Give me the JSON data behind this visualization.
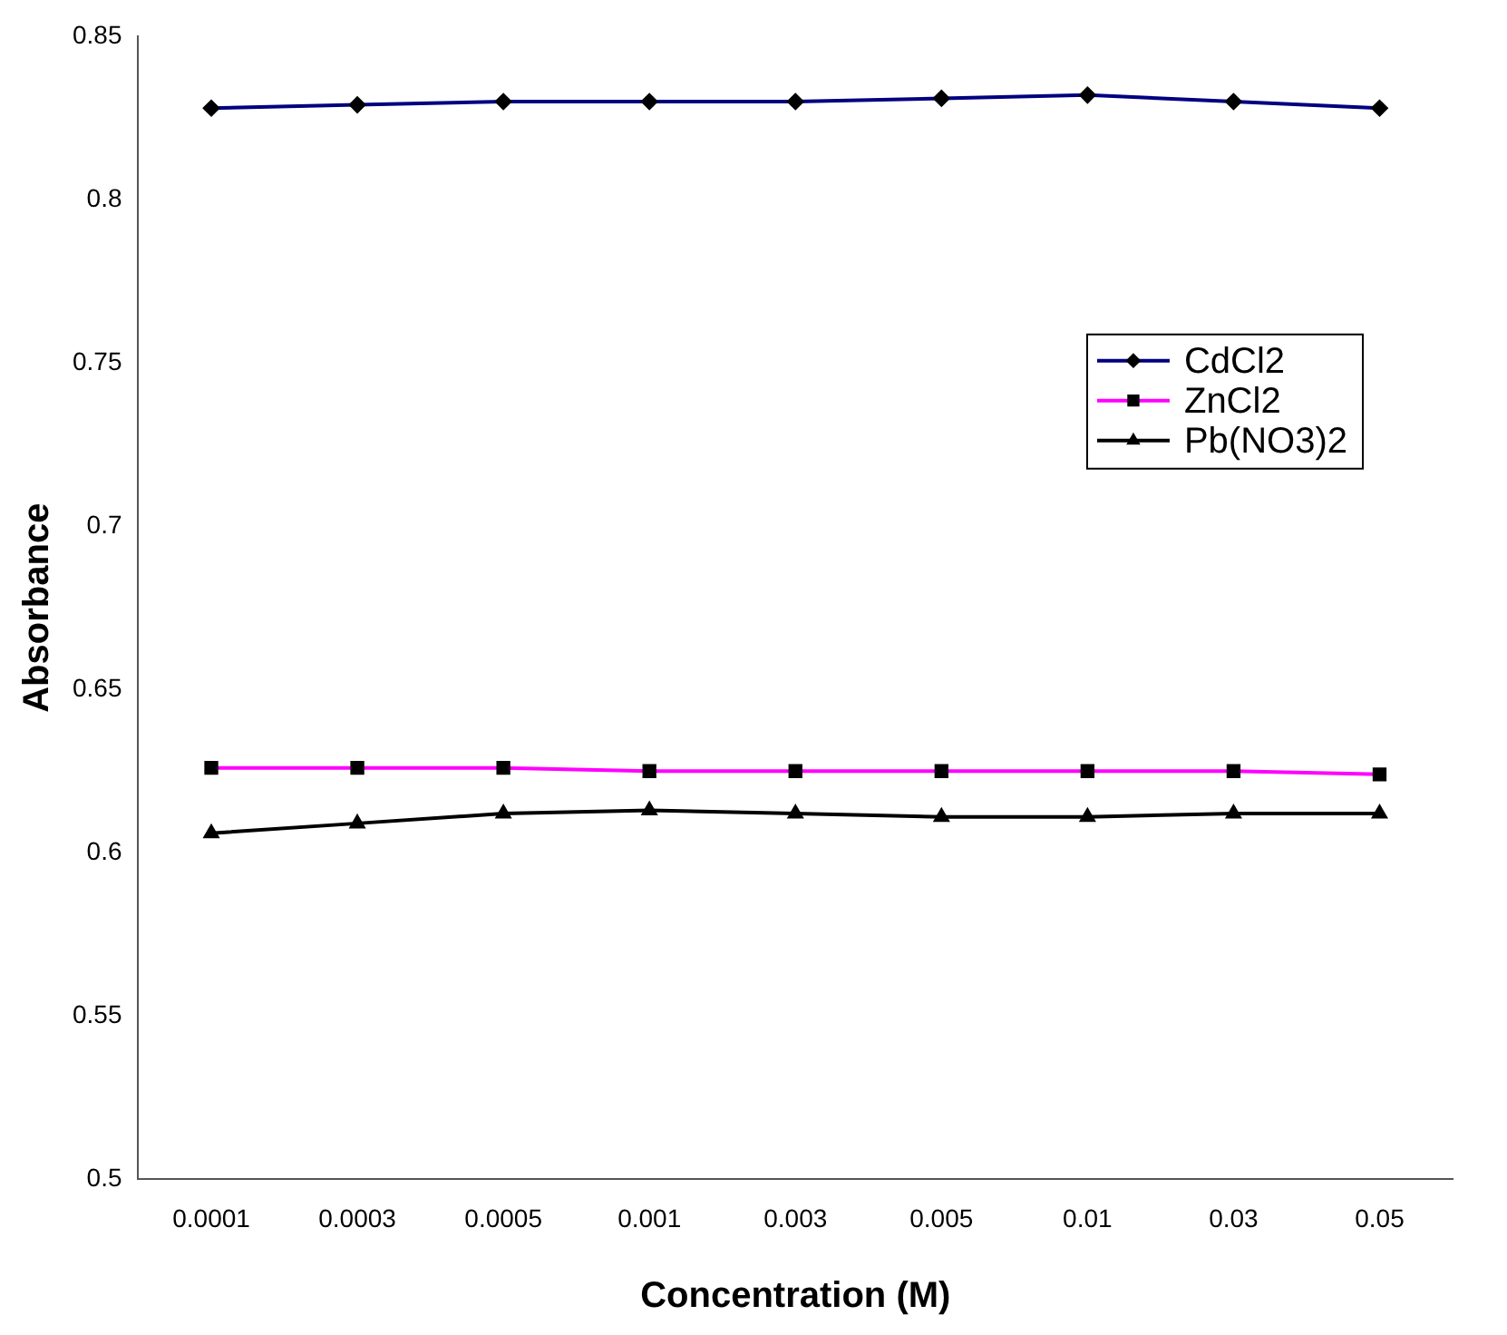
{
  "chart_data": {
    "type": "line",
    "xlabel": "Concentration (M)",
    "ylabel": "Absorbance",
    "categories": [
      "0.0001",
      "0.0003",
      "0.0005",
      "0.001",
      "0.003",
      "0.005",
      "0.01",
      "0.03",
      "0.05"
    ],
    "series": [
      {
        "name": "CdCl2",
        "color": "#000080",
        "marker": "diamond",
        "values": [
          0.828,
          0.829,
          0.83,
          0.83,
          0.83,
          0.831,
          0.832,
          0.83,
          0.828
        ]
      },
      {
        "name": "ZnCl2",
        "color": "#ff00ff",
        "marker": "square",
        "values": [
          0.626,
          0.626,
          0.626,
          0.625,
          0.625,
          0.625,
          0.625,
          0.625,
          0.624
        ]
      },
      {
        "name": "Pb(NO3)2",
        "color": "#000000",
        "marker": "triangle",
        "values": [
          0.606,
          0.609,
          0.612,
          0.613,
          0.612,
          0.611,
          0.611,
          0.612,
          0.612
        ]
      }
    ],
    "ylim": [
      0.5,
      0.85
    ],
    "yticks": [
      0.5,
      0.55,
      0.6,
      0.65,
      0.7,
      0.75,
      0.8,
      0.85
    ],
    "grid": false,
    "legend": "right",
    "line_style": "solid"
  }
}
